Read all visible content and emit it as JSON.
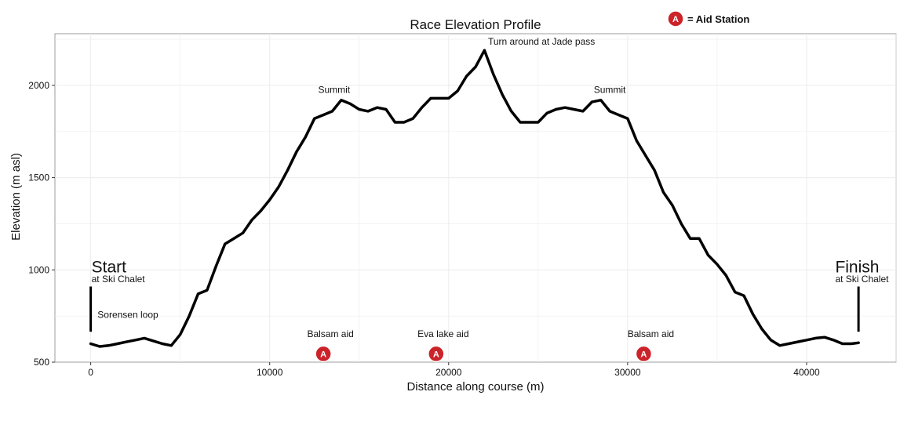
{
  "chart_data": {
    "type": "line",
    "title": "Race Elevation Profile",
    "xlabel": "Distance along course (m)",
    "ylabel": "Elevation (m asl)",
    "xlim": [
      -2000,
      45000
    ],
    "ylim": [
      500,
      2280
    ],
    "xticks": [
      0,
      10000,
      20000,
      30000,
      40000
    ],
    "yticks": [
      500,
      1000,
      1500,
      2000
    ],
    "grid": true,
    "legend": {
      "marker": "A",
      "label": "= Aid Station",
      "position": "top-right"
    },
    "series": [
      {
        "x": [
          0,
          500,
          1000,
          1500,
          2000,
          2500,
          3000,
          3500,
          4000,
          4500,
          5000,
          5500,
          6000,
          6500,
          7000,
          7500,
          8000,
          8500,
          9000,
          9500,
          10000,
          10500,
          11000,
          11500,
          12000,
          12500,
          13000,
          13500,
          14000,
          14500,
          15000,
          15500,
          16000,
          16500,
          17000,
          17500,
          18000,
          18500,
          19000,
          19500,
          20000,
          20500,
          21000,
          21500,
          22000,
          22500,
          23000,
          23500,
          24000,
          24500,
          25000,
          25500,
          26000,
          26500,
          27000,
          27500,
          28000,
          28500,
          29000,
          29500,
          30000,
          30500,
          31000,
          31500,
          32000,
          32500,
          33000,
          33500,
          34000,
          34500,
          35000,
          35500,
          36000,
          36500,
          37000,
          37500,
          38000,
          38500,
          39000,
          39500,
          40000,
          40500,
          41000,
          41500,
          42000,
          42500,
          42900
        ],
        "y": [
          600,
          585,
          590,
          600,
          610,
          620,
          630,
          615,
          600,
          590,
          650,
          750,
          870,
          890,
          1020,
          1140,
          1170,
          1200,
          1270,
          1320,
          1380,
          1450,
          1540,
          1640,
          1720,
          1820,
          1840,
          1860,
          1920,
          1900,
          1870,
          1860,
          1880,
          1870,
          1800,
          1800,
          1820,
          1880,
          1930,
          1930,
          1930,
          1970,
          2050,
          2100,
          2190,
          2060,
          1950,
          1860,
          1800,
          1800,
          1800,
          1850,
          1870,
          1880,
          1870,
          1860,
          1910,
          1920,
          1860,
          1840,
          1820,
          1700,
          1620,
          1540,
          1420,
          1350,
          1250,
          1170,
          1170,
          1080,
          1030,
          970,
          880,
          860,
          760,
          680,
          620,
          590,
          600,
          610,
          620,
          630,
          635,
          620,
          600,
          600,
          605
        ]
      }
    ],
    "annotations": [
      {
        "id": "start",
        "big": "Start",
        "small": "at Ski Chalet"
      },
      {
        "id": "finish",
        "big": "Finish",
        "small": "at Ski Chalet"
      },
      {
        "id": "sorensen",
        "text": "Sorensen loop"
      },
      {
        "id": "summit1",
        "text": "Summit"
      },
      {
        "id": "summit2",
        "text": "Summit"
      },
      {
        "id": "turnaround",
        "text": "Turn around at Jade pass"
      }
    ],
    "aid_stations": [
      {
        "x": 13000,
        "label": "Balsam aid"
      },
      {
        "x": 19300,
        "label": "Eva lake aid"
      },
      {
        "x": 30900,
        "label": "Balsam aid"
      }
    ],
    "colors": {
      "line": "#000000",
      "aid": "#cc2229",
      "grid": "#ececec",
      "frame": "#9e9e9e"
    }
  }
}
